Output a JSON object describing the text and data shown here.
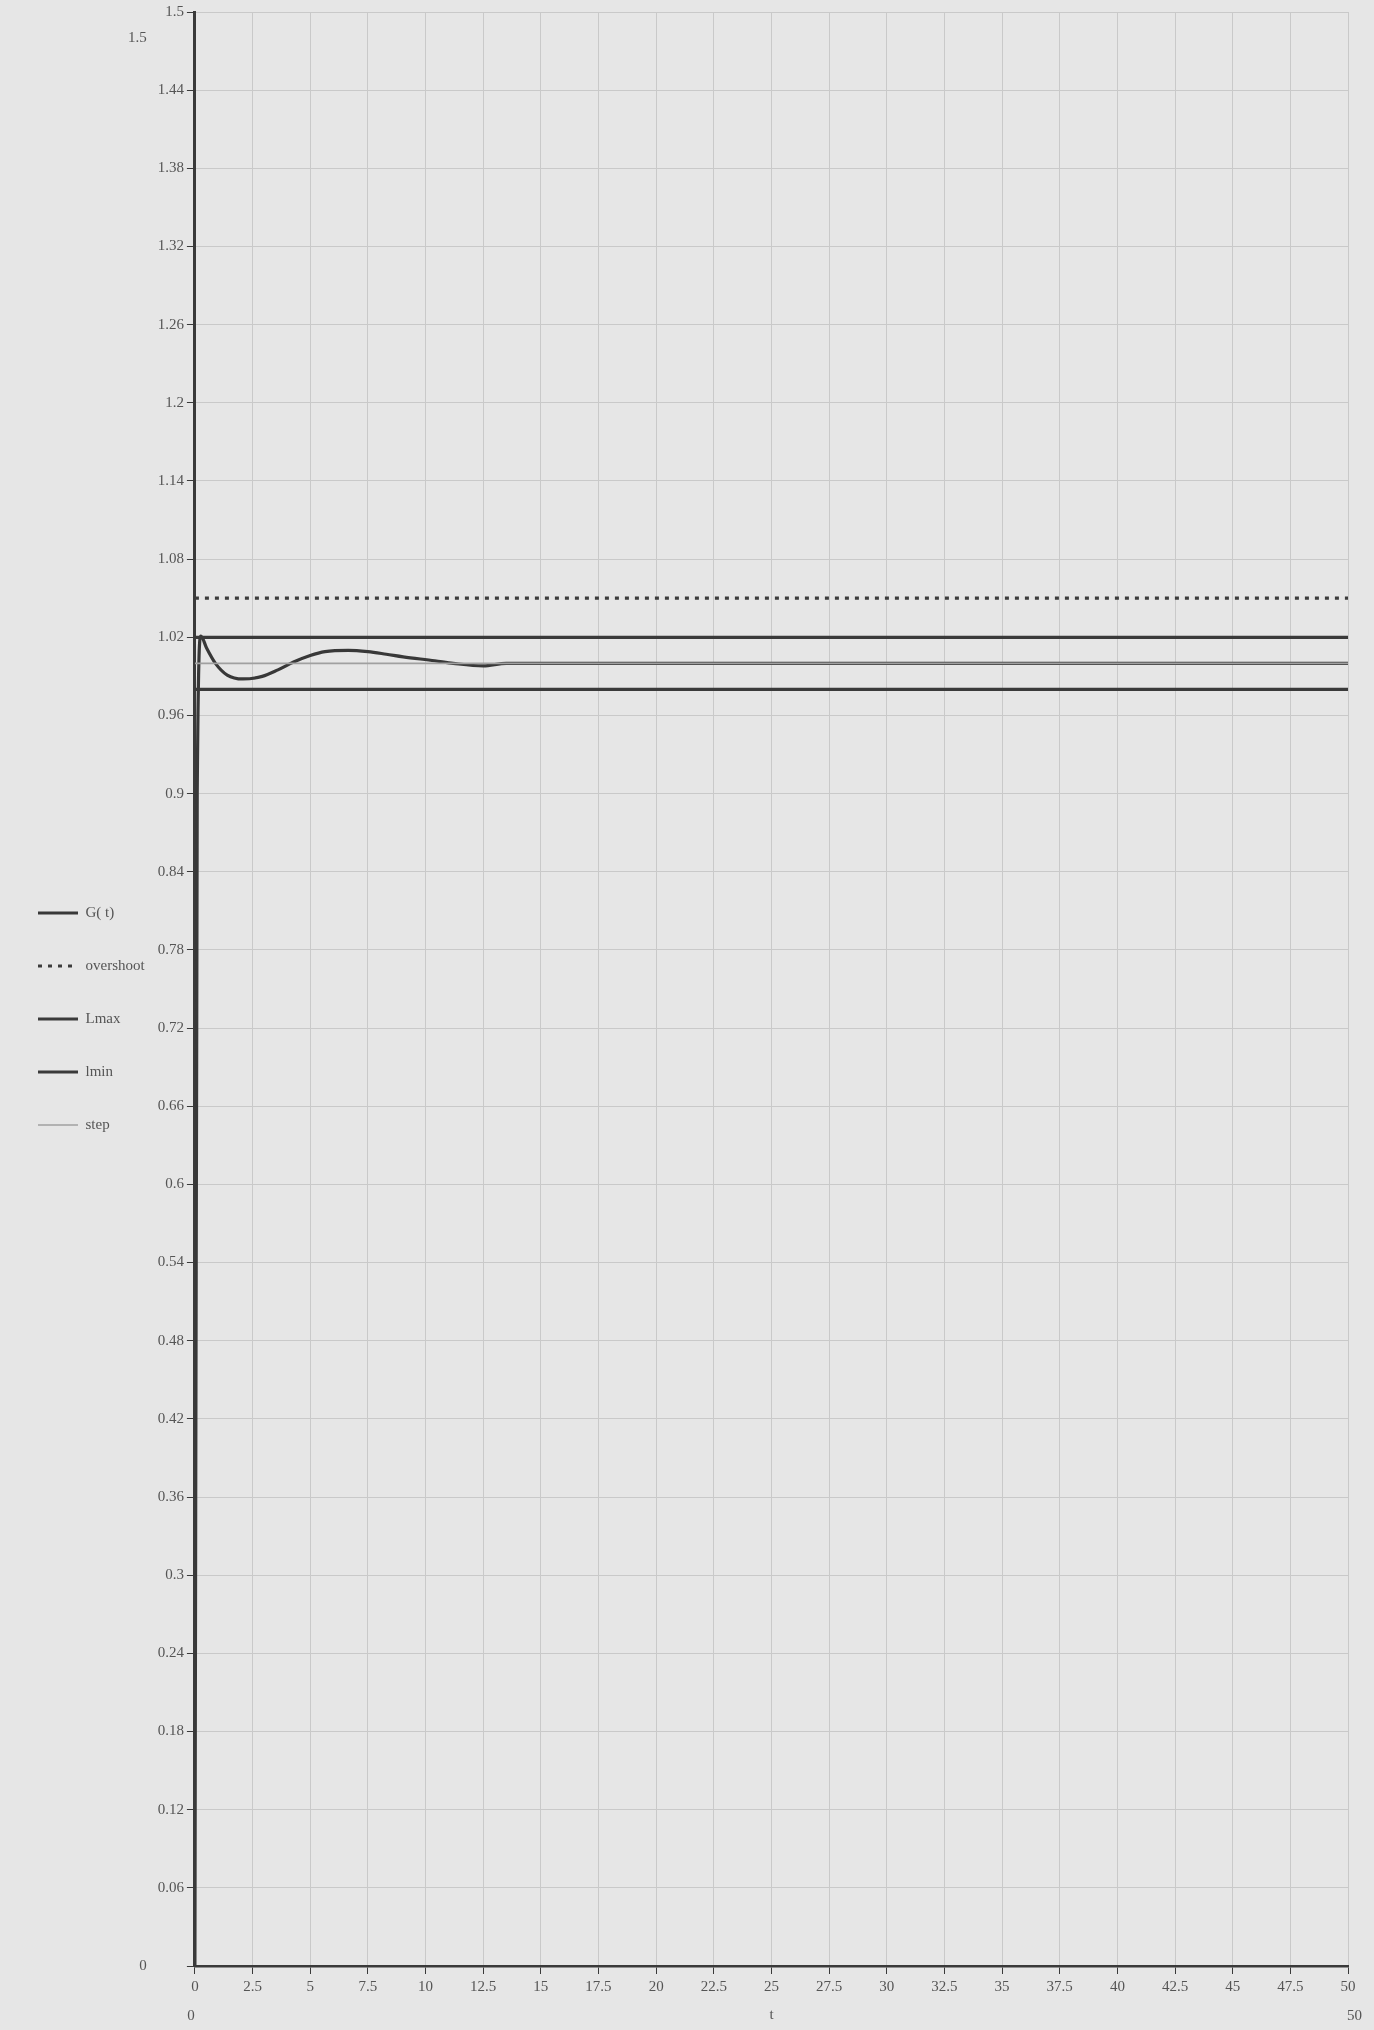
{
  "chart_data": {
    "type": "line",
    "xlabel": "t",
    "legend": "left",
    "grid": true,
    "xlim": [
      0,
      50
    ],
    "ylim": [
      0,
      1.5
    ],
    "xticks": [
      0,
      2.5,
      5,
      7.5,
      10,
      12.5,
      15,
      17.5,
      20,
      22.5,
      25,
      27.5,
      30,
      32.5,
      35,
      37.5,
      40,
      42.5,
      45,
      47.5,
      50
    ],
    "yticks": [
      {
        "value": 0,
        "label": null
      },
      0.06,
      0.12,
      0.18,
      0.24,
      0.3,
      0.36,
      0.42,
      0.48,
      0.54,
      0.6,
      0.66,
      0.72,
      0.78,
      0.84,
      0.9,
      0.96,
      1.02,
      1.08,
      1.14,
      1.2,
      1.26,
      1.32,
      1.38,
      1.44,
      1.5
    ],
    "annotations": [
      "1.5",
      "0",
      "0",
      "50"
    ],
    "x": [
      0,
      50
    ],
    "series": [
      {
        "name": "G( t)",
        "color": "#383838",
        "x": [
          0,
          0.1,
          0.26,
          0.5,
          0.89,
          1.4,
          2.08,
          2.92,
          3.6,
          4.28,
          5.0,
          5.64,
          6.65,
          7.5,
          8.3,
          9.03,
          10.4,
          11.2,
          12.5,
          13.5,
          15,
          20,
          25,
          30,
          35,
          40,
          45,
          50
        ],
        "values": [
          0,
          0.9,
          1.021,
          1.012,
          1.0,
          0.991,
          0.988,
          0.99,
          0.995,
          1.001,
          1.006,
          1.009,
          1.01,
          1.009,
          1.007,
          1.005,
          1.002,
          1.0,
          0.998,
          1.0,
          1.0,
          1.0,
          1.0,
          1.0,
          1.0,
          1.0,
          1.0,
          1.0
        ]
      },
      {
        "name": "overshoot",
        "color": "#3c3c3c",
        "line_style": "dotted",
        "values": [
          1.05,
          1.05
        ]
      },
      {
        "name": "Lmax",
        "color": "#3a3a3a",
        "values": [
          1.02,
          1.02
        ]
      },
      {
        "name": "lmin",
        "color": "#3a3a3a",
        "values": [
          0.98,
          0.98
        ]
      },
      {
        "name": "step",
        "color": "#a0a0a0",
        "values": [
          1,
          1
        ]
      }
    ]
  }
}
